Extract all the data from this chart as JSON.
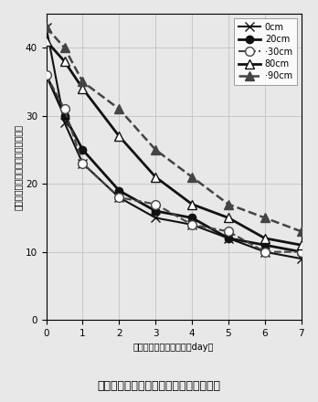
{
  "x": [
    0,
    0.5,
    1,
    2,
    3,
    4,
    5,
    6,
    7
  ],
  "series": [
    {
      "label": "0cm",
      "values": [
        43,
        29,
        23,
        18,
        15,
        14,
        12,
        10,
        9
      ],
      "linestyle": "-",
      "marker": "x",
      "color": "#111111",
      "linewidth": 1.5,
      "markersize": 7,
      "markerfacecolor": "#111111",
      "zorder": 3
    },
    {
      "label": "20cm",
      "values": [
        36,
        30,
        25,
        19,
        16,
        15,
        12,
        11,
        10
      ],
      "linestyle": "-",
      "marker": "o",
      "color": "#111111",
      "linewidth": 2.0,
      "markersize": 6,
      "markerfacecolor": "#111111",
      "zorder": 3
    },
    {
      "label": "·30cm",
      "values": [
        36,
        31,
        23,
        18,
        17,
        14,
        13,
        10,
        10
      ],
      "linestyle": "--",
      "marker": "o",
      "color": "#444444",
      "linewidth": 1.5,
      "markersize": 7,
      "markerfacecolor": "#ffffff",
      "zorder": 3
    },
    {
      "label": "80cm",
      "values": [
        41,
        38,
        34,
        27,
        21,
        17,
        15,
        12,
        11
      ],
      "linestyle": "-",
      "marker": "^",
      "color": "#111111",
      "linewidth": 2.0,
      "markersize": 7,
      "markerfacecolor": "#ffffff",
      "zorder": 3
    },
    {
      "label": "·90cm",
      "values": [
        43,
        40,
        35,
        31,
        25,
        21,
        17,
        15,
        13
      ],
      "linestyle": "--",
      "marker": "^",
      "color": "#444444",
      "linewidth": 1.8,
      "markersize": 7,
      "markerfacecolor": "#444444",
      "zorder": 3
    }
  ],
  "xlabel": "暗渠排水開始後の日数（day）",
  "ylabel": "作土層の体積含水率（％）（平均）",
  "caption": "围４　埋め戻し土厘と作土層の水分低下",
  "xlim": [
    0,
    7
  ],
  "ylim": [
    0,
    45
  ],
  "xticks": [
    0,
    1,
    2,
    3,
    4,
    5,
    6,
    7
  ],
  "yticks": [
    0,
    10,
    20,
    30,
    40
  ],
  "figsize": [
    3.48,
    4.4
  ],
  "dpi": 100
}
